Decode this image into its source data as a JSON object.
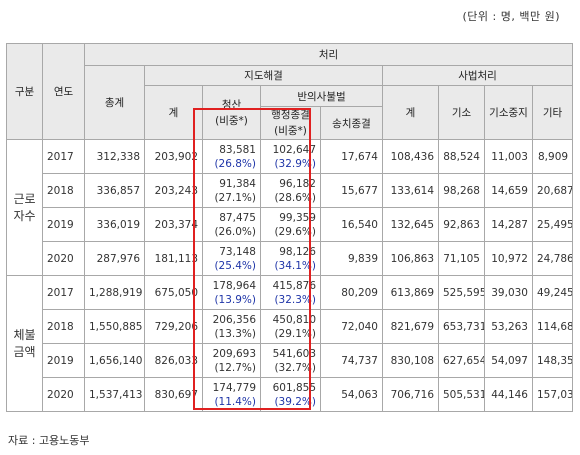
{
  "unit_note": "(단위 : 명, 백만 원)",
  "source_note": "자료 : 고용노동부",
  "headers": {
    "category": "구분",
    "year": "연도",
    "processing": "처리",
    "total": "총계",
    "guidance": "지도해결",
    "guidance_sum": "계",
    "settlement": "청산",
    "share": "(비중*)",
    "nonrepeat": "반의사불벌",
    "admin_closure": "행정종결",
    "transfer_closure": "송치종결",
    "judicial": "사법처리",
    "judicial_sum": "계",
    "indictment": "기소",
    "suspension": "기소중지",
    "other": "기타"
  },
  "groups": [
    {
      "label_line1": "근로",
      "label_line2": "자수",
      "rows": [
        {
          "year": "2017",
          "total": "312,338",
          "guidance_sum": "203,902",
          "settlement": "83,581",
          "settlement_share": "(26.8%)",
          "settlement_highlight": true,
          "admin": "102,647",
          "admin_share": "(32.9%)",
          "admin_highlight": true,
          "transfer": "17,674",
          "judicial_sum": "108,436",
          "indictment": "88,524",
          "suspension": "11,003",
          "other": "8,909"
        },
        {
          "year": "2018",
          "total": "336,857",
          "guidance_sum": "203,243",
          "settlement": "91,384",
          "settlement_share": "(27.1%)",
          "settlement_highlight": false,
          "admin": "96,182",
          "admin_share": "(28.6%)",
          "admin_highlight": false,
          "transfer": "15,677",
          "judicial_sum": "133,614",
          "indictment": "98,268",
          "suspension": "14,659",
          "other": "20,687"
        },
        {
          "year": "2019",
          "total": "336,019",
          "guidance_sum": "203,374",
          "settlement": "87,475",
          "settlement_share": "(26.0%)",
          "settlement_highlight": false,
          "admin": "99,359",
          "admin_share": "(29.6%)",
          "admin_highlight": false,
          "transfer": "16,540",
          "judicial_sum": "132,645",
          "indictment": "92,863",
          "suspension": "14,287",
          "other": "25,495"
        },
        {
          "year": "2020",
          "total": "287,976",
          "guidance_sum": "181,113",
          "settlement": "73,148",
          "settlement_share": "(25.4%)",
          "settlement_highlight": true,
          "admin": "98,126",
          "admin_share": "(34.1%)",
          "admin_highlight": true,
          "transfer": "9,839",
          "judicial_sum": "106,863",
          "indictment": "71,105",
          "suspension": "10,972",
          "other": "24,786"
        }
      ]
    },
    {
      "label_line1": "체불",
      "label_line2": "금액",
      "rows": [
        {
          "year": "2017",
          "total": "1,288,919",
          "guidance_sum": "675,050",
          "settlement": "178,964",
          "settlement_share": "(13.9%)",
          "settlement_highlight": true,
          "admin": "415,876",
          "admin_share": "(32.3%)",
          "admin_highlight": true,
          "transfer": "80,209",
          "judicial_sum": "613,869",
          "indictment": "525,595",
          "suspension": "39,030",
          "other": "49,245"
        },
        {
          "year": "2018",
          "total": "1,550,885",
          "guidance_sum": "729,206",
          "settlement": "206,356",
          "settlement_share": "(13.3%)",
          "settlement_highlight": false,
          "admin": "450,810",
          "admin_share": "(29.1%)",
          "admin_highlight": false,
          "transfer": "72,040",
          "judicial_sum": "821,679",
          "indictment": "653,731",
          "suspension": "53,263",
          "other": "114,685"
        },
        {
          "year": "2019",
          "total": "1,656,140",
          "guidance_sum": "826,033",
          "settlement": "209,693",
          "settlement_share": "(12.7%)",
          "settlement_highlight": false,
          "admin": "541,603",
          "admin_share": "(32.7%)",
          "admin_highlight": false,
          "transfer": "74,737",
          "judicial_sum": "830,108",
          "indictment": "627,654",
          "suspension": "54,097",
          "other": "148,357"
        },
        {
          "year": "2020",
          "total": "1,537,413",
          "guidance_sum": "830,697",
          "settlement": "174,779",
          "settlement_share": "(11.4%)",
          "settlement_highlight": true,
          "admin": "601,855",
          "admin_share": "(39.2%)",
          "admin_highlight": true,
          "transfer": "54,063",
          "judicial_sum": "706,716",
          "indictment": "505,531",
          "suspension": "44,146",
          "other": "157,039"
        }
      ]
    }
  ],
  "colors": {
    "highlight_text": "#1f35a8",
    "box_border": "#e02020",
    "header_bg": "#eaeaea"
  }
}
